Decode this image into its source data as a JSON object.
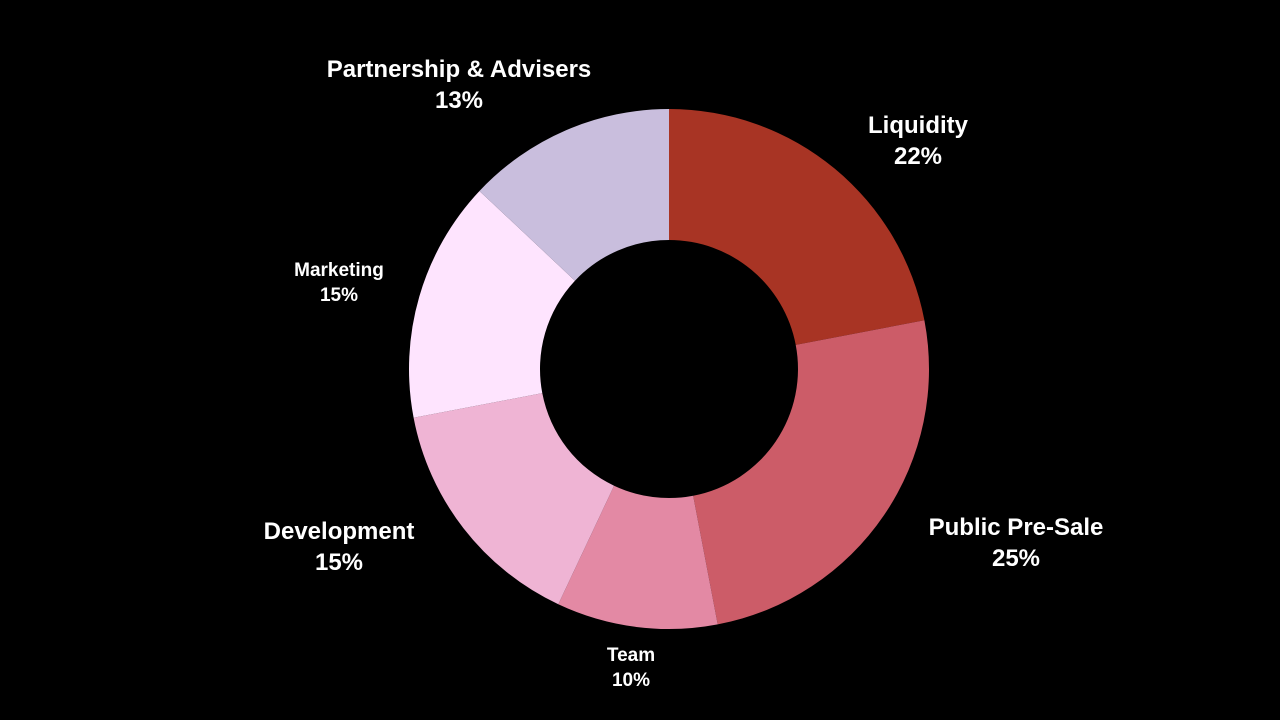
{
  "chart_data": {
    "type": "pie",
    "donut": true,
    "slices": [
      {
        "label": "Liquidity",
        "value": 22,
        "value_label": "22%",
        "color": "#a83424"
      },
      {
        "label": "Public Pre-Sale",
        "value": 25,
        "value_label": "25%",
        "color": "#cc5c68"
      },
      {
        "label": "Team",
        "value": 10,
        "value_label": "10%",
        "color": "#e389a4"
      },
      {
        "label": "Development",
        "value": 15,
        "value_label": "15%",
        "color": "#efb4d4"
      },
      {
        "label": "Marketing",
        "value": 15,
        "value_label": "15%",
        "color": "#fee4fe"
      },
      {
        "label": "Partnership & Advisers",
        "value": 13,
        "value_label": "13%",
        "color": "#c9bedd"
      }
    ],
    "background": "#000000"
  }
}
